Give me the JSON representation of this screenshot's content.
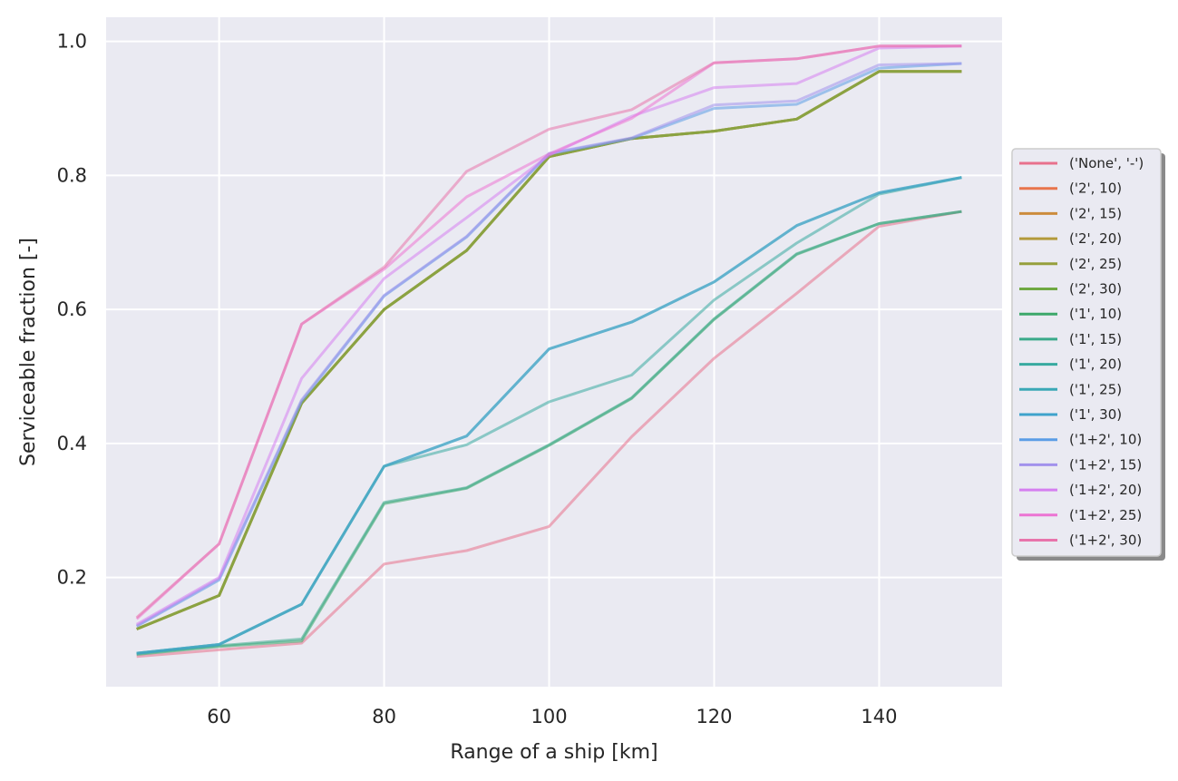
{
  "chart_data": {
    "type": "line",
    "xlabel": "Range of a ship [km]",
    "ylabel": "Serviceable fraction [-]",
    "xlim": [
      46.3,
      154.9
    ],
    "ylim": [
      0.037,
      1.036
    ],
    "xticks": [
      "60",
      "80",
      "100",
      "120",
      "140"
    ],
    "yticks": [
      "0.2",
      "0.4",
      "0.6",
      "0.8",
      "1.0"
    ],
    "grid": true,
    "legend_position": "center-right-outside",
    "x": [
      50,
      60,
      70,
      80,
      90,
      100,
      110,
      120,
      130,
      140,
      150
    ],
    "series": [
      {
        "name": "('None', '-')",
        "color": "#e8718d",
        "values": [
          0.082,
          0.092,
          0.102,
          0.22,
          0.24,
          0.276,
          0.41,
          0.527,
          0.624,
          0.724,
          0.746
        ]
      },
      {
        "name": "('2', 10)",
        "color": "#e8744c",
        "values": [
          0.123,
          0.173,
          0.46,
          0.6,
          0.688,
          0.828,
          0.855,
          0.866,
          0.884,
          0.955,
          0.955
        ]
      },
      {
        "name": "('2', 15)",
        "color": "#cc8c3d",
        "values": [
          0.123,
          0.173,
          0.46,
          0.6,
          0.688,
          0.828,
          0.855,
          0.866,
          0.884,
          0.955,
          0.955
        ]
      },
      {
        "name": "('2', 20)",
        "color": "#b39a3b",
        "values": [
          0.123,
          0.173,
          0.46,
          0.6,
          0.688,
          0.828,
          0.855,
          0.866,
          0.884,
          0.955,
          0.955
        ]
      },
      {
        "name": "('2', 25)",
        "color": "#96a03c",
        "values": [
          0.123,
          0.173,
          0.46,
          0.6,
          0.688,
          0.828,
          0.855,
          0.866,
          0.884,
          0.955,
          0.955
        ]
      },
      {
        "name": "('2', 30)",
        "color": "#6fa842",
        "values": [
          0.123,
          0.173,
          0.46,
          0.6,
          0.688,
          0.828,
          0.855,
          0.866,
          0.884,
          0.955,
          0.955
        ]
      },
      {
        "name": "('1', 10)",
        "color": "#3ca86a",
        "values": [
          0.085,
          0.097,
          0.105,
          0.31,
          0.333,
          0.397,
          0.467,
          0.585,
          0.682,
          0.728,
          0.746
        ]
      },
      {
        "name": "('1', 15)",
        "color": "#3aaa8a",
        "values": [
          0.086,
          0.098,
          0.108,
          0.312,
          0.334,
          0.398,
          0.468,
          0.586,
          0.683,
          0.728,
          0.746
        ]
      },
      {
        "name": "('1', 20)",
        "color": "#38aaa0",
        "values": [
          0.087,
          0.1,
          0.16,
          0.366,
          0.398,
          0.462,
          0.502,
          0.614,
          0.699,
          0.772,
          0.797
        ]
      },
      {
        "name": "('1', 25)",
        "color": "#3aa8b6",
        "values": [
          0.087,
          0.1,
          0.16,
          0.366,
          0.411,
          0.541,
          0.581,
          0.641,
          0.725,
          0.774,
          0.797
        ]
      },
      {
        "name": "('1', 30)",
        "color": "#3fa3cc",
        "values": [
          0.087,
          0.1,
          0.16,
          0.366,
          0.411,
          0.541,
          0.581,
          0.641,
          0.725,
          0.774,
          0.797
        ]
      },
      {
        "name": "('1+2', 10)",
        "color": "#5b9de6",
        "values": [
          0.127,
          0.196,
          0.463,
          0.62,
          0.708,
          0.832,
          0.855,
          0.9,
          0.906,
          0.96,
          0.967
        ]
      },
      {
        "name": "('1+2', 15)",
        "color": "#a292ec",
        "values": [
          0.128,
          0.198,
          0.465,
          0.621,
          0.709,
          0.833,
          0.856,
          0.905,
          0.911,
          0.965,
          0.967
        ]
      },
      {
        "name": "('1+2', 20)",
        "color": "#d57ff0",
        "values": [
          0.13,
          0.2,
          0.497,
          0.646,
          0.737,
          0.83,
          0.888,
          0.931,
          0.937,
          0.99,
          0.993
        ]
      },
      {
        "name": "('1+2', 25)",
        "color": "#ec74d3",
        "values": [
          0.138,
          0.25,
          0.578,
          0.66,
          0.768,
          0.832,
          0.885,
          0.968,
          0.974,
          0.993,
          0.993
        ]
      },
      {
        "name": "('1+2', 30)",
        "color": "#e874ab",
        "values": [
          0.14,
          0.25,
          0.578,
          0.663,
          0.806,
          0.869,
          0.898,
          0.968,
          0.974,
          0.993,
          0.993
        ]
      }
    ]
  }
}
